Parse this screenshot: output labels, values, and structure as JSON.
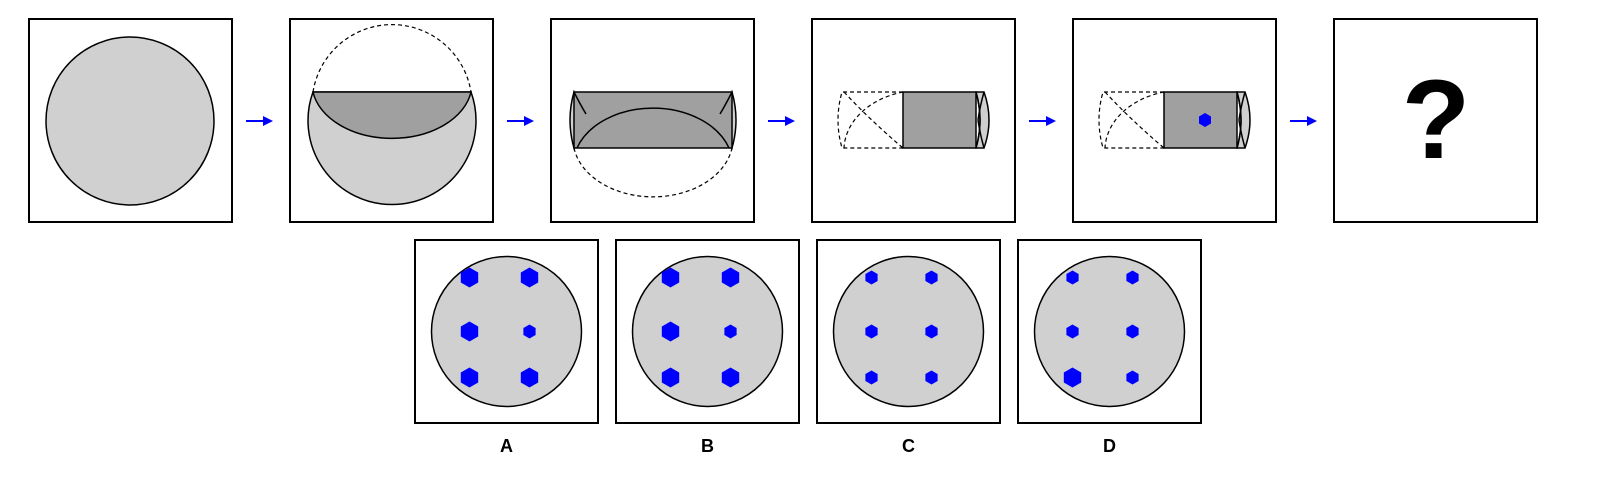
{
  "question_mark": "?",
  "colors": {
    "light_gray": "#d0d0d0",
    "dark_gray": "#a0a0a0",
    "dot_blue": "#0000ff",
    "arrow_blue": "#0000ff",
    "outline": "#000000"
  },
  "options": [
    {
      "label": "A",
      "dot_sizes": [
        "large",
        "large",
        "large",
        "small",
        "large",
        "large"
      ]
    },
    {
      "label": "B",
      "dot_sizes": [
        "large",
        "large",
        "large",
        "small",
        "large",
        "large"
      ]
    },
    {
      "label": "C",
      "dot_sizes": [
        "small",
        "small",
        "small",
        "small",
        "small",
        "small"
      ]
    },
    {
      "label": "D",
      "dot_sizes": [
        "small",
        "small",
        "small",
        "small",
        "large",
        "small"
      ]
    }
  ]
}
